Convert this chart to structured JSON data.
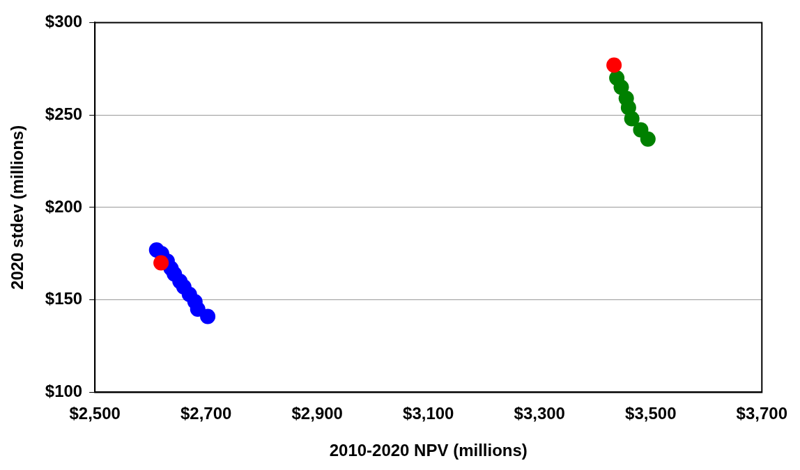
{
  "chart_data": {
    "type": "scatter",
    "xlabel": "2010-2020 NPV (millions)",
    "ylabel": "2020 stdev (millions)",
    "xlim": [
      2500,
      3700
    ],
    "ylim": [
      100,
      300
    ],
    "xticks": [
      {
        "value": 2500,
        "label": "$2,500"
      },
      {
        "value": 2700,
        "label": "$2,700"
      },
      {
        "value": 2900,
        "label": "$2,900"
      },
      {
        "value": 3100,
        "label": "$3,100"
      },
      {
        "value": 3300,
        "label": "$3,300"
      },
      {
        "value": 3500,
        "label": "$3,500"
      },
      {
        "value": 3700,
        "label": "$3,700"
      }
    ],
    "yticks": [
      {
        "value": 100,
        "label": "$100"
      },
      {
        "value": 150,
        "label": "$150"
      },
      {
        "value": 200,
        "label": "$200"
      },
      {
        "value": 250,
        "label": "$250"
      },
      {
        "value": 300,
        "label": "$300"
      }
    ],
    "grid": "y",
    "legend": false,
    "marker": "circle",
    "series": [
      {
        "color": "#0000ff",
        "x": [
          2611,
          2620,
          2630,
          2637,
          2643,
          2653,
          2660,
          2670,
          2680,
          2685,
          2703
        ],
        "values": [
          177,
          175,
          171,
          167,
          164,
          160,
          157,
          153,
          149,
          145,
          141
        ]
      },
      {
        "color": "#008000",
        "x": [
          3439,
          3447,
          3456,
          3460,
          3466,
          3482,
          3495
        ],
        "values": [
          270,
          265,
          259,
          254,
          248,
          242,
          237
        ]
      },
      {
        "color": "#ff0000",
        "x": [
          2619,
          3434
        ],
        "values": [
          170,
          277
        ]
      }
    ]
  }
}
